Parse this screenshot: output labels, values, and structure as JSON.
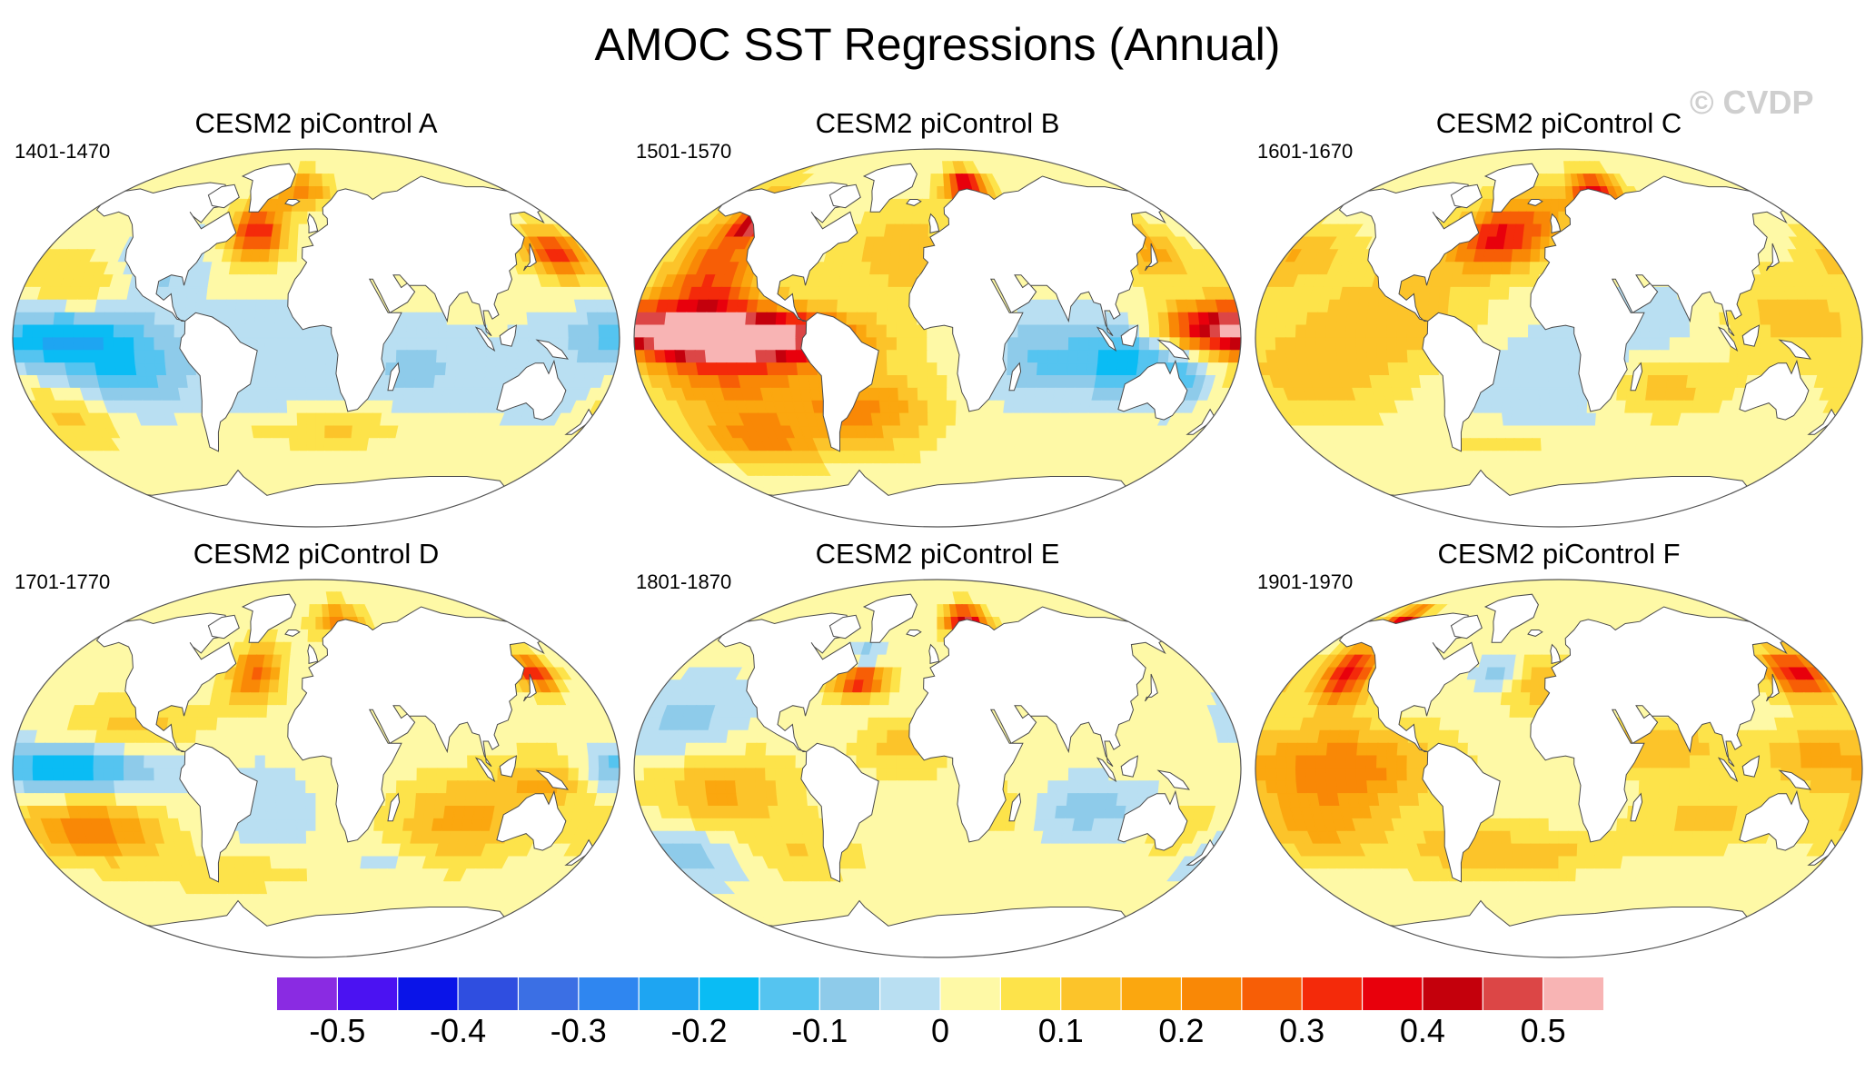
{
  "title": "AMOC SST Regressions (Annual)",
  "watermark": "© CVDP",
  "panels": [
    {
      "title": "CESM2 piControl A",
      "period": "1401-1470",
      "pattern": "A"
    },
    {
      "title": "CESM2 piControl B",
      "period": "1501-1570",
      "pattern": "B"
    },
    {
      "title": "CESM2 piControl C",
      "period": "1601-1670",
      "pattern": "C"
    },
    {
      "title": "CESM2 piControl D",
      "period": "1701-1770",
      "pattern": "D"
    },
    {
      "title": "CESM2 piControl E",
      "period": "1801-1870",
      "pattern": "E"
    },
    {
      "title": "CESM2 piControl F",
      "period": "1901-1970",
      "pattern": "F"
    }
  ],
  "colorbar": {
    "labels": [
      "-0.5",
      "-0.4",
      "-0.3",
      "-0.2",
      "-0.1",
      "0",
      "0.1",
      "0.2",
      "0.3",
      "0.4",
      "0.5"
    ],
    "colors": [
      "#8a2be2",
      "#4b12f2",
      "#0a14e8",
      "#2f4ee0",
      "#3b6fe4",
      "#2f86f0",
      "#1ea5f2",
      "#0abcf4",
      "#55c4f0",
      "#8ecbea",
      "#b9dff2",
      "#fef9a6",
      "#fde34a",
      "#fcc42a",
      "#fba70f",
      "#f98806",
      "#f75e06",
      "#f42a0a",
      "#e8000c",
      "#c4000c",
      "#dc4646",
      "#f8b4b4"
    ]
  }
}
